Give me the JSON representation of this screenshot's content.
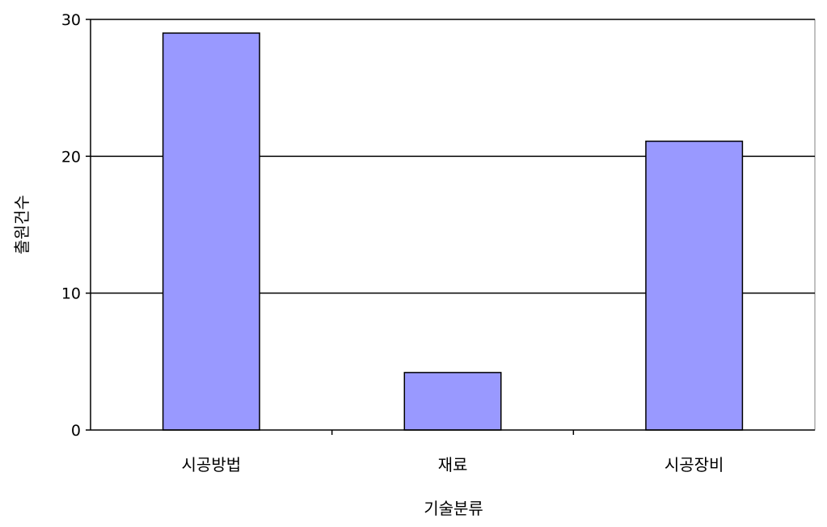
{
  "chart_data": {
    "type": "bar",
    "title": "",
    "xlabel": "기술분류",
    "ylabel": "출원건수",
    "categories": [
      "시공방법",
      "재료",
      "시공장비"
    ],
    "series": [
      {
        "values": [
          29,
          4.2,
          21.1
        ]
      }
    ],
    "ylim": [
      0,
      30
    ],
    "yticks": [
      0,
      10,
      20,
      30
    ],
    "grid": true,
    "legend": "none",
    "colors": {
      "bar_fill": "#9999ff",
      "bar_stroke": "#000000",
      "gridline": "#000000",
      "plot_background": "#ffffff"
    }
  }
}
